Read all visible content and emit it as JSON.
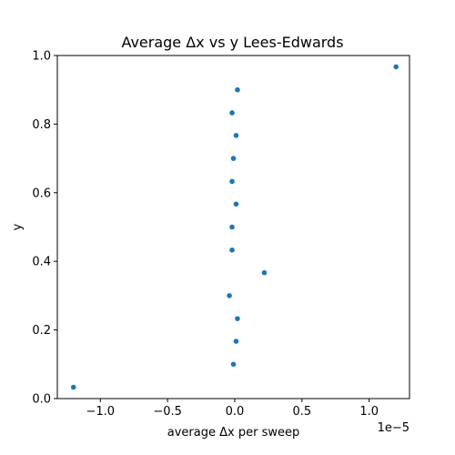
{
  "chart_data": {
    "type": "scatter",
    "title": "Average Δx vs y Lees-Edwards",
    "xlabel": "average Δx per sweep",
    "ylabel": "y",
    "x_scale_label": "1e−5",
    "xlim": [
      -1.32e-05,
      1.3e-05
    ],
    "ylim": [
      0.0,
      1.0
    ],
    "x_ticks": [
      -1e-05,
      -5e-06,
      0.0,
      5e-06,
      1e-05
    ],
    "x_tick_labels": [
      "−1.0",
      "−0.5",
      "0.0",
      "0.5",
      "1.0"
    ],
    "y_ticks": [
      0.0,
      0.2,
      0.4,
      0.6,
      0.8,
      1.0
    ],
    "y_tick_labels": [
      "0.0",
      "0.2",
      "0.4",
      "0.6",
      "0.8",
      "1.0"
    ],
    "grid": false,
    "color": "#1f77b4",
    "points": [
      {
        "x": -1.2e-05,
        "y": 0.033
      },
      {
        "x": -1e-07,
        "y": 0.1
      },
      {
        "x": 1e-07,
        "y": 0.167
      },
      {
        "x": 2e-07,
        "y": 0.233
      },
      {
        "x": -4e-07,
        "y": 0.3
      },
      {
        "x": 2.2e-06,
        "y": 0.367
      },
      {
        "x": -2e-07,
        "y": 0.433
      },
      {
        "x": -2e-07,
        "y": 0.5
      },
      {
        "x": 1e-07,
        "y": 0.567
      },
      {
        "x": -2e-07,
        "y": 0.633
      },
      {
        "x": -1e-07,
        "y": 0.7
      },
      {
        "x": 1e-07,
        "y": 0.767
      },
      {
        "x": -2e-07,
        "y": 0.833
      },
      {
        "x": 2e-07,
        "y": 0.9
      },
      {
        "x": 1.2e-05,
        "y": 0.967
      }
    ]
  }
}
